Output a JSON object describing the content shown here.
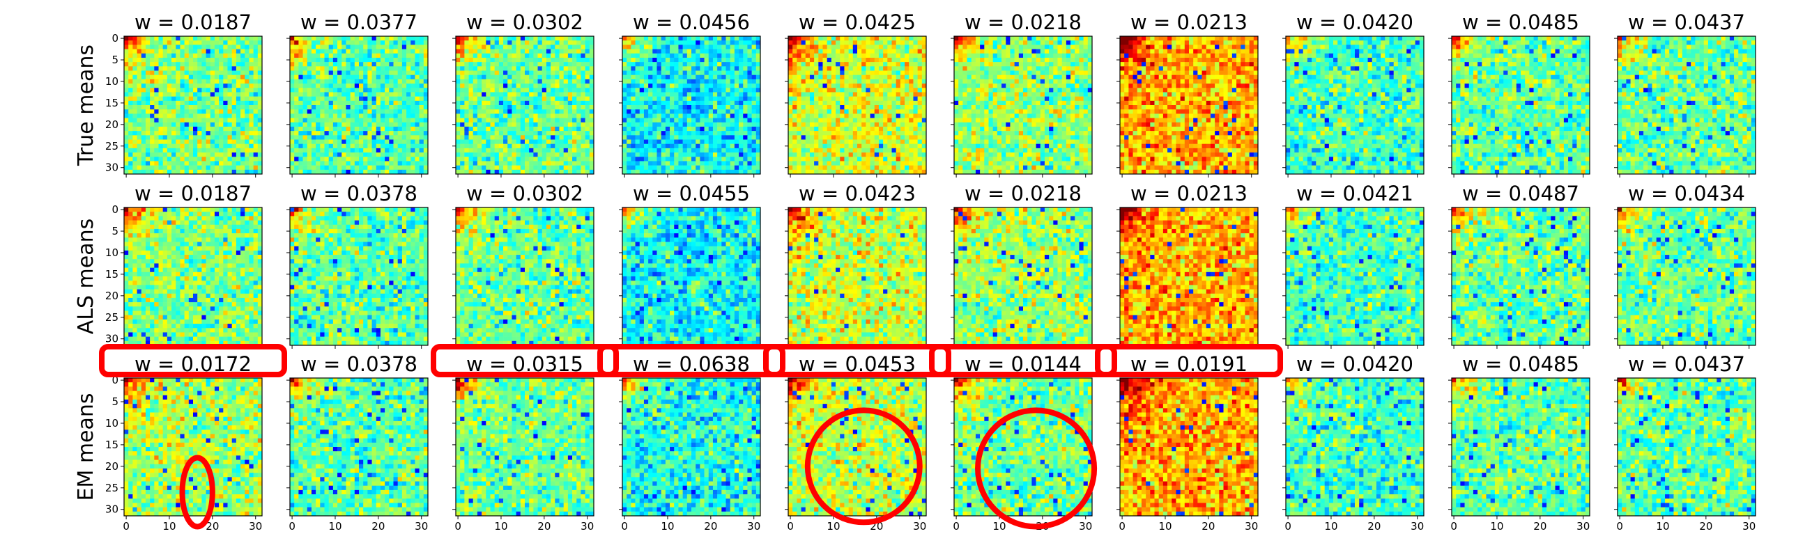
{
  "chart_data": {
    "type": "heatmap",
    "grid_size": 32,
    "colormap": "jet",
    "rows": [
      {
        "label": "True means",
        "panels": [
          {
            "title": "w = 0.0187",
            "tone": 0.5,
            "corner": 0.55
          },
          {
            "title": "w = 0.0377",
            "tone": 0.46,
            "corner": 0.45
          },
          {
            "title": "w = 0.0302",
            "tone": 0.48,
            "corner": 0.5
          },
          {
            "title": "w = 0.0456",
            "tone": 0.38,
            "corner": 0.45
          },
          {
            "title": "w = 0.0425",
            "tone": 0.58,
            "corner": 0.5
          },
          {
            "title": "w = 0.0218",
            "tone": 0.52,
            "corner": 0.5
          },
          {
            "title": "w = 0.0213",
            "tone": 0.7,
            "corner": 0.5
          },
          {
            "title": "w = 0.0420",
            "tone": 0.44,
            "corner": 0.35
          },
          {
            "title": "w = 0.0485",
            "tone": 0.47,
            "corner": 0.4
          },
          {
            "title": "w = 0.0437",
            "tone": 0.47,
            "corner": 0.4
          }
        ]
      },
      {
        "label": "ALS means",
        "panels": [
          {
            "title": "w = 0.0187",
            "tone": 0.5,
            "corner": 0.55
          },
          {
            "title": "w = 0.0378",
            "tone": 0.46,
            "corner": 0.45
          },
          {
            "title": "w = 0.0302",
            "tone": 0.48,
            "corner": 0.5
          },
          {
            "title": "w = 0.0455",
            "tone": 0.38,
            "corner": 0.45
          },
          {
            "title": "w = 0.0423",
            "tone": 0.57,
            "corner": 0.5
          },
          {
            "title": "w = 0.0218",
            "tone": 0.52,
            "corner": 0.5
          },
          {
            "title": "w = 0.0213",
            "tone": 0.7,
            "corner": 0.5
          },
          {
            "title": "w = 0.0421",
            "tone": 0.44,
            "corner": 0.35
          },
          {
            "title": "w = 0.0487",
            "tone": 0.47,
            "corner": 0.4
          },
          {
            "title": "w = 0.0434",
            "tone": 0.47,
            "corner": 0.4
          }
        ]
      },
      {
        "label": "EM means",
        "panels": [
          {
            "title": "w = 0.0172",
            "tone": 0.53,
            "corner": 0.5
          },
          {
            "title": "w = 0.0378",
            "tone": 0.46,
            "corner": 0.45
          },
          {
            "title": "w = 0.0315",
            "tone": 0.48,
            "corner": 0.5
          },
          {
            "title": "w = 0.0638",
            "tone": 0.4,
            "corner": 0.45
          },
          {
            "title": "w = 0.0453",
            "tone": 0.56,
            "corner": 0.5
          },
          {
            "title": "w = 0.0144",
            "tone": 0.48,
            "corner": 0.5
          },
          {
            "title": "w = 0.0191",
            "tone": 0.7,
            "corner": 0.5
          },
          {
            "title": "w = 0.0420",
            "tone": 0.44,
            "corner": 0.35
          },
          {
            "title": "w = 0.0485",
            "tone": 0.47,
            "corner": 0.4
          },
          {
            "title": "w = 0.0437",
            "tone": 0.47,
            "corner": 0.4
          }
        ]
      }
    ],
    "y_ticks": [
      0,
      5,
      10,
      15,
      20,
      25,
      30
    ],
    "x_ticks": [
      0,
      10,
      20,
      30
    ],
    "highlights": {
      "color": "#ff0000",
      "boxed_titles": [
        {
          "row": 2,
          "col": 0
        },
        {
          "row": 2,
          "col": 2
        },
        {
          "row": 2,
          "col": 3
        },
        {
          "row": 2,
          "col": 4
        },
        {
          "row": 2,
          "col": 5
        },
        {
          "row": 2,
          "col": 6
        }
      ],
      "ellipses": [
        {
          "row": 2,
          "col": 0,
          "cx": 16.5,
          "cy": 26,
          "rx": 3.5,
          "ry": 8
        },
        {
          "row": 2,
          "col": 4,
          "cx": 17,
          "cy": 20,
          "rx": 13,
          "ry": 13
        },
        {
          "row": 2,
          "col": 5,
          "cx": 18.5,
          "cy": 20.5,
          "rx": 13.5,
          "ry": 13.5
        }
      ]
    }
  }
}
